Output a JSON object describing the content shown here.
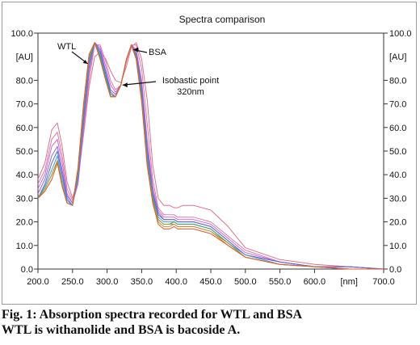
{
  "chart_data": {
    "type": "line",
    "title": "Spectra comparison",
    "xlabel": "",
    "x_unit_label": "[nm]",
    "ylabel": "",
    "y_unit_label": "[AU]",
    "xlim": [
      200,
      700
    ],
    "ylim": [
      0,
      100
    ],
    "x_ticks": [
      "200.0",
      "250.0",
      "300.0",
      "350.0",
      "400.0",
      "450.0",
      "500.0",
      "550.0",
      "600.0",
      "700.0"
    ],
    "x_tick_values": [
      200,
      250,
      300,
      350,
      400,
      450,
      500,
      550,
      600,
      700
    ],
    "y_ticks": [
      "0.0",
      "10.0",
      "20.0",
      "30.0",
      "40.0",
      "50.0",
      "60.0",
      "70.0",
      "80.0",
      "100.0"
    ],
    "y_tick_values": [
      0,
      10,
      20,
      30,
      40,
      50,
      60,
      70,
      80,
      100
    ],
    "grid": false,
    "series": [
      {
        "color": "#e0708a",
        "x": [
          200,
          210,
          220,
          228,
          235,
          242,
          250,
          258,
          266,
          274,
          282,
          290,
          298,
          305,
          312,
          320,
          328,
          335,
          342,
          350,
          358,
          366,
          374,
          382,
          390,
          397,
          402,
          410,
          425,
          450,
          475,
          500,
          550,
          600,
          650,
          700
        ],
        "y": [
          38,
          45,
          59,
          62,
          52,
          37,
          30,
          38,
          57,
          77,
          90,
          92,
          89,
          84,
          80,
          79,
          86,
          94,
          96,
          89,
          72,
          44,
          30,
          27,
          27,
          26,
          26,
          27,
          27,
          25,
          18,
          9,
          4,
          2,
          1,
          0
        ]
      },
      {
        "color": "#e07aa8",
        "x": [
          200,
          210,
          220,
          228,
          235,
          242,
          250,
          258,
          266,
          274,
          282,
          290,
          298,
          305,
          312,
          320,
          328,
          335,
          342,
          350,
          358,
          366,
          374,
          382,
          390,
          397,
          402,
          410,
          425,
          450,
          475,
          500,
          550,
          600,
          650,
          700
        ],
        "y": [
          36,
          42,
          55,
          58,
          48,
          34,
          29,
          37,
          58,
          80,
          95,
          95,
          88,
          80,
          76,
          78,
          88,
          95,
          95,
          85,
          62,
          38,
          26,
          23,
          23,
          23,
          22,
          22,
          22,
          20,
          14,
          8,
          3,
          1,
          1,
          0
        ]
      },
      {
        "color": "#d06ad0",
        "x": [
          200,
          210,
          220,
          228,
          235,
          242,
          250,
          258,
          266,
          274,
          282,
          290,
          298,
          305,
          312,
          320,
          328,
          335,
          342,
          350,
          358,
          366,
          374,
          382,
          390,
          397,
          402,
          410,
          425,
          450,
          475,
          500,
          550,
          600,
          650,
          700
        ],
        "y": [
          34,
          40,
          52,
          55,
          45,
          32,
          28,
          36,
          60,
          83,
          96,
          94,
          86,
          78,
          75,
          78,
          89,
          95,
          93,
          80,
          55,
          35,
          25,
          22,
          22,
          22,
          21,
          21,
          21,
          19,
          13,
          7,
          3,
          1,
          1,
          0
        ]
      },
      {
        "color": "#8a6adf",
        "x": [
          200,
          210,
          220,
          228,
          235,
          242,
          250,
          258,
          266,
          274,
          282,
          290,
          298,
          305,
          312,
          320,
          328,
          335,
          342,
          350,
          358,
          366,
          374,
          382,
          390,
          397,
          402,
          410,
          425,
          450,
          475,
          500,
          550,
          600,
          650,
          700
        ],
        "y": [
          32,
          38,
          48,
          52,
          42,
          31,
          28,
          38,
          62,
          85,
          96,
          93,
          84,
          76,
          74,
          78,
          89,
          95,
          92,
          78,
          52,
          33,
          24,
          21,
          21,
          21,
          20,
          20,
          20,
          18,
          12,
          6,
          3,
          1,
          1,
          0
        ]
      },
      {
        "color": "#5a6ad0",
        "x": [
          200,
          210,
          220,
          228,
          235,
          242,
          250,
          258,
          266,
          274,
          282,
          290,
          298,
          305,
          312,
          320,
          328,
          335,
          342,
          350,
          358,
          366,
          374,
          382,
          390,
          397,
          402,
          410,
          425,
          450,
          475,
          500,
          550,
          600,
          650,
          700
        ],
        "y": [
          30,
          36,
          45,
          50,
          40,
          30,
          27,
          39,
          64,
          87,
          96,
          92,
          83,
          75,
          73,
          78,
          89,
          95,
          91,
          76,
          50,
          32,
          23,
          21,
          21,
          21,
          20,
          20,
          20,
          18,
          12,
          6,
          3,
          1,
          1,
          0
        ]
      },
      {
        "color": "#4a9ad8",
        "x": [
          200,
          210,
          220,
          228,
          235,
          242,
          250,
          258,
          266,
          274,
          282,
          290,
          298,
          305,
          312,
          320,
          328,
          335,
          342,
          350,
          358,
          366,
          374,
          382,
          390,
          397,
          402,
          410,
          425,
          450,
          475,
          500,
          550,
          600,
          650,
          700
        ],
        "y": [
          30,
          35,
          42,
          48,
          38,
          29,
          27,
          40,
          66,
          88,
          96,
          91,
          82,
          74,
          73,
          78,
          89,
          95,
          90,
          74,
          48,
          31,
          22,
          20,
          20,
          20,
          19,
          19,
          19,
          17,
          11,
          6,
          2,
          1,
          0,
          0
        ]
      },
      {
        "color": "#3aa070",
        "x": [
          200,
          210,
          220,
          228,
          235,
          242,
          250,
          258,
          266,
          274,
          282,
          290,
          298,
          305,
          312,
          320,
          328,
          335,
          342,
          350,
          358,
          366,
          374,
          382,
          390,
          397,
          402,
          410,
          425,
          450,
          475,
          500,
          550,
          600,
          650,
          700
        ],
        "y": [
          30,
          34,
          40,
          46,
          36,
          28,
          27,
          41,
          68,
          89,
          96,
          90,
          81,
          74,
          73,
          78,
          89,
          95,
          90,
          73,
          46,
          30,
          21,
          19,
          19,
          20,
          19,
          19,
          19,
          17,
          11,
          5,
          2,
          1,
          0,
          0
        ]
      },
      {
        "color": "#9aa030",
        "x": [
          200,
          210,
          220,
          228,
          235,
          242,
          250,
          258,
          266,
          274,
          282,
          290,
          298,
          305,
          312,
          320,
          328,
          335,
          342,
          350,
          358,
          366,
          374,
          382,
          390,
          397,
          402,
          410,
          425,
          450,
          475,
          500,
          550,
          600,
          650,
          700
        ],
        "y": [
          30,
          34,
          40,
          46,
          36,
          28,
          27,
          42,
          69,
          90,
          96,
          89,
          80,
          73,
          73,
          78,
          89,
          95,
          89,
          72,
          45,
          29,
          21,
          19,
          19,
          19,
          18,
          18,
          18,
          16,
          11,
          5,
          2,
          1,
          0,
          0
        ]
      },
      {
        "color": "#e08a30",
        "x": [
          200,
          210,
          220,
          228,
          235,
          242,
          250,
          258,
          266,
          274,
          282,
          290,
          298,
          305,
          312,
          320,
          328,
          335,
          342,
          350,
          358,
          366,
          374,
          382,
          390,
          397,
          402,
          410,
          425,
          450,
          475,
          500,
          550,
          600,
          650,
          700
        ],
        "y": [
          30,
          33,
          38,
          45,
          35,
          28,
          27,
          43,
          70,
          91,
          96,
          89,
          80,
          73,
          73,
          78,
          89,
          95,
          89,
          71,
          44,
          28,
          20,
          18,
          18,
          19,
          18,
          18,
          18,
          16,
          10,
          5,
          2,
          1,
          0,
          0
        ]
      },
      {
        "color": "#e05a30",
        "x": [
          200,
          210,
          220,
          228,
          235,
          242,
          250,
          258,
          266,
          274,
          282,
          290,
          298,
          305,
          312,
          320,
          328,
          335,
          342,
          350,
          358,
          366,
          374,
          382,
          390,
          397,
          402,
          410,
          425,
          450,
          475,
          500,
          550,
          600,
          650,
          700
        ],
        "y": [
          30,
          33,
          38,
          45,
          35,
          28,
          27,
          43,
          70,
          91,
          96,
          89,
          80,
          73,
          73,
          78,
          89,
          95,
          89,
          71,
          44,
          28,
          19,
          17,
          17,
          18,
          17,
          17,
          17,
          15,
          10,
          5,
          2,
          1,
          0,
          0
        ]
      }
    ],
    "annotations": [
      {
        "id": "wtl",
        "text": "WTL"
      },
      {
        "id": "bsa",
        "text": "BSA"
      },
      {
        "id": "isobastic",
        "text": "Isobastic point",
        "subtext": "320nm"
      }
    ]
  },
  "caption": {
    "line1": "Fig. 1: Absorption spectra recorded for WTL and BSA",
    "line2": "WTL is withanolide and BSA is bacoside A."
  }
}
